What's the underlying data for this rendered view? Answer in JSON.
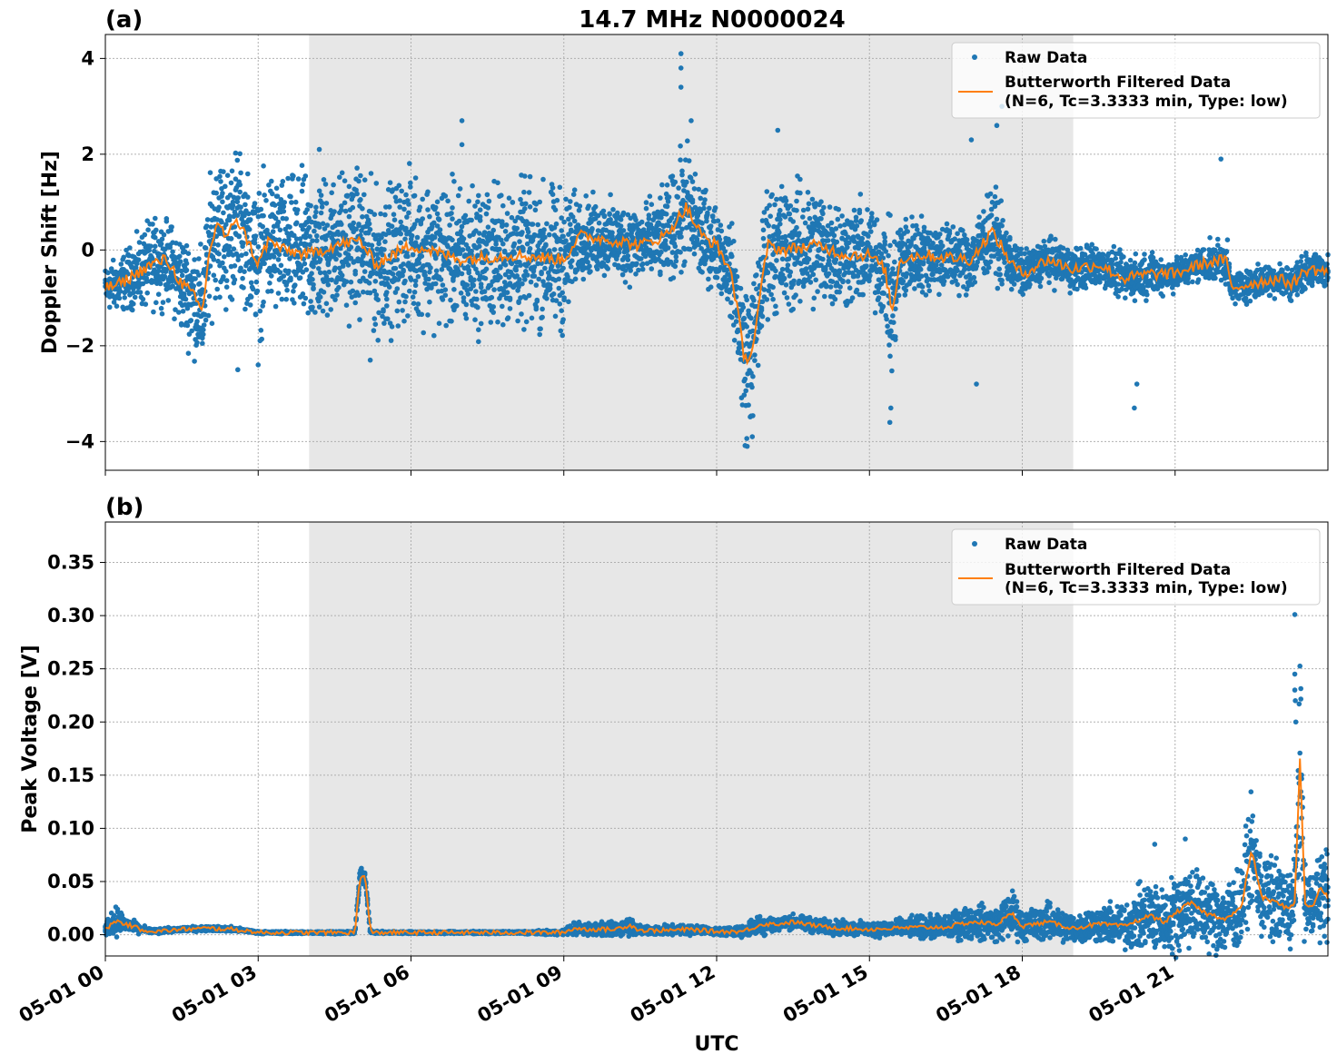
{
  "figure": {
    "title": "14.7 MHz N0000024",
    "xlabel": "UTC"
  },
  "colors": {
    "raw": "#1f77b4",
    "filtered": "#ff7f0e",
    "shade": "#e7e7e7",
    "grid": "#b0b0b0"
  },
  "chart_data": [
    {
      "panel_label": "(a)",
      "type": "scatter",
      "ylabel": "Doppler Shift [Hz]",
      "xlim_hours": [
        0,
        24
      ],
      "ylim": [
        -4.6,
        4.5
      ],
      "yticks": [
        4,
        2,
        0,
        -2,
        -4
      ],
      "ytick_labels": [
        "4",
        "2",
        "0",
        "−2",
        "−4"
      ],
      "xtick_hours": [
        0,
        3,
        6,
        9,
        12,
        15,
        18,
        21
      ],
      "xtick_labels": [
        "05-01 00",
        "05-01 03",
        "05-01 06",
        "05-01 09",
        "05-01 12",
        "05-01 15",
        "05-01 18",
        "05-01 21"
      ],
      "shaded_hours": [
        4.0,
        19.0
      ],
      "grid": true,
      "legend_position": "top-right",
      "legend": [
        "Raw Data",
        "Butterworth Filtered Data",
        "(N=6, Tc=3.3333 min, Type: low)"
      ],
      "series": [
        {
          "name": "Butterworth Filtered Data",
          "x_hours": [
            0.0,
            0.3,
            0.6,
            0.9,
            1.2,
            1.5,
            1.7,
            1.9,
            2.05,
            2.2,
            2.4,
            2.55,
            2.75,
            3.0,
            3.2,
            3.5,
            4.0,
            4.5,
            5.0,
            5.3,
            6.0,
            7.0,
            8.0,
            9.0,
            9.3,
            10.0,
            10.5,
            11.0,
            11.4,
            11.7,
            12.0,
            12.3,
            12.55,
            12.7,
            12.85,
            13.0,
            13.3,
            14.0,
            14.5,
            15.0,
            15.3,
            15.45,
            15.6,
            16.0,
            17.0,
            17.4,
            17.8,
            18.0,
            18.5,
            19.0,
            19.5,
            20.0,
            20.5,
            21.0,
            21.5,
            22.0,
            22.1,
            22.5,
            23.0,
            23.3,
            23.6,
            24.0
          ],
          "y_hz": [
            -0.8,
            -0.7,
            -0.5,
            -0.3,
            -0.2,
            -0.7,
            -0.9,
            -1.3,
            0.0,
            0.6,
            0.2,
            0.7,
            0.3,
            -0.3,
            0.2,
            0.0,
            -0.1,
            0.1,
            0.2,
            -0.3,
            0.1,
            -0.2,
            -0.1,
            -0.2,
            0.3,
            0.2,
            0.1,
            0.3,
            0.9,
            0.3,
            0.1,
            -0.5,
            -2.3,
            -2.1,
            -1.0,
            0.1,
            0.0,
            0.1,
            -0.1,
            -0.1,
            -0.4,
            -1.3,
            -0.2,
            -0.1,
            -0.2,
            0.4,
            -0.3,
            -0.5,
            -0.2,
            -0.4,
            -0.3,
            -0.6,
            -0.5,
            -0.5,
            -0.3,
            -0.2,
            -0.8,
            -0.7,
            -0.6,
            -0.7,
            -0.4,
            -0.45
          ]
        },
        {
          "name": "Raw Data",
          "x_hours": [
            0.0,
            0.3,
            0.6,
            0.9,
            1.2,
            1.5,
            1.7,
            1.9,
            2.05,
            2.2,
            2.4,
            2.55,
            2.75,
            3.0,
            3.2,
            3.5,
            4.0,
            4.5,
            5.0,
            5.3,
            6.0,
            7.0,
            8.0,
            9.0,
            9.3,
            10.0,
            10.5,
            11.0,
            11.4,
            11.7,
            12.0,
            12.3,
            12.55,
            12.7,
            12.85,
            13.0,
            13.3,
            14.0,
            14.5,
            15.0,
            15.3,
            15.45,
            15.6,
            16.0,
            17.0,
            17.4,
            17.8,
            18.0,
            18.5,
            19.0,
            19.5,
            20.0,
            20.5,
            21.0,
            21.5,
            22.0,
            22.1,
            22.5,
            23.0,
            23.3,
            23.6,
            24.0
          ],
          "y_hz": [
            -0.8,
            -0.7,
            -0.5,
            -0.3,
            -0.2,
            -0.7,
            -0.9,
            -1.3,
            0.0,
            0.6,
            0.2,
            0.7,
            0.3,
            -0.3,
            0.2,
            0.0,
            -0.1,
            0.1,
            0.2,
            -0.3,
            0.1,
            -0.2,
            -0.1,
            -0.2,
            0.3,
            0.2,
            0.1,
            0.3,
            0.9,
            0.3,
            0.1,
            -0.5,
            -2.3,
            -2.1,
            -1.0,
            0.1,
            0.0,
            0.1,
            -0.1,
            -0.1,
            -0.4,
            -1.3,
            -0.2,
            -0.1,
            -0.2,
            0.4,
            -0.3,
            -0.5,
            -0.2,
            -0.4,
            -0.3,
            -0.6,
            -0.5,
            -0.5,
            -0.3,
            -0.2,
            -0.8,
            -0.7,
            -0.6,
            -0.7,
            -0.4,
            -0.45
          ],
          "spread_hz": [
            0.4,
            0.5,
            0.6,
            0.8,
            0.7,
            0.9,
            1.0,
            1.1,
            1.2,
            1.3,
            1.4,
            1.3,
            1.2,
            1.3,
            1.3,
            1.3,
            1.4,
            1.3,
            1.3,
            1.3,
            1.3,
            1.3,
            1.3,
            1.3,
            0.7,
            0.7,
            0.7,
            0.8,
            1.2,
            0.9,
            0.7,
            0.8,
            1.5,
            1.3,
            1.1,
            1.2,
            1.2,
            1.1,
            1.0,
            0.9,
            0.9,
            1.4,
            0.8,
            0.7,
            0.6,
            0.8,
            0.5,
            0.4,
            0.4,
            0.4,
            0.4,
            0.4,
            0.4,
            0.3,
            0.3,
            0.4,
            0.3,
            0.3,
            0.3,
            0.3,
            0.3,
            0.3
          ],
          "outliers_x_hours": [
            11.3,
            11.3,
            11.3,
            11.5,
            12.6,
            12.7,
            13.2,
            15.4,
            15.42,
            17.0,
            17.1,
            17.5,
            17.6,
            20.2,
            20.25,
            21.9,
            4.2,
            7.0,
            7.0,
            2.6,
            3.0,
            5.2
          ],
          "outliers_y_hz": [
            4.1,
            3.8,
            3.4,
            2.7,
            -4.1,
            -3.9,
            2.5,
            -3.6,
            -3.3,
            2.3,
            -2.8,
            2.6,
            3.0,
            -3.3,
            -2.8,
            1.9,
            2.1,
            2.7,
            2.2,
            -2.5,
            -2.4,
            -2.3
          ]
        }
      ]
    },
    {
      "panel_label": "(b)",
      "type": "scatter",
      "ylabel": "Peak Voltage [V]",
      "xlim_hours": [
        0,
        24
      ],
      "ylim": [
        -0.02,
        0.388
      ],
      "yticks": [
        0.0,
        0.05,
        0.1,
        0.15,
        0.2,
        0.25,
        0.3,
        0.35
      ],
      "ytick_labels": [
        "0.00",
        "0.05",
        "0.10",
        "0.15",
        "0.20",
        "0.25",
        "0.30",
        "0.35"
      ],
      "xtick_hours": [
        0,
        3,
        6,
        9,
        12,
        15,
        18,
        21
      ],
      "xtick_labels": [
        "05-01 00",
        "05-01 03",
        "05-01 06",
        "05-01 09",
        "05-01 12",
        "05-01 15",
        "05-01 18",
        "05-01 21"
      ],
      "shaded_hours": [
        4.0,
        19.0
      ],
      "grid": true,
      "legend_position": "top-right",
      "legend": [
        "Raw Data",
        "Butterworth Filtered Data",
        "(N=6, Tc=3.3333 min, Type: low)"
      ],
      "series": [
        {
          "name": "Butterworth Filtered Data",
          "x_hours": [
            0.0,
            0.2,
            0.4,
            0.7,
            1.0,
            1.5,
            2.0,
            2.5,
            2.9,
            3.0,
            4.0,
            4.9,
            5.0,
            5.1,
            5.2,
            5.3,
            6.0,
            7.0,
            8.0,
            9.0,
            9.2,
            9.5,
            10.0,
            10.3,
            10.5,
            11.0,
            11.5,
            12.0,
            12.5,
            12.9,
            13.2,
            13.5,
            14.0,
            14.5,
            15.0,
            15.5,
            16.0,
            16.5,
            17.0,
            17.5,
            17.8,
            18.0,
            18.5,
            19.0,
            19.5,
            20.0,
            20.5,
            20.8,
            21.0,
            21.3,
            21.6,
            22.0,
            22.3,
            22.5,
            22.7,
            23.0,
            23.2,
            23.35,
            23.45,
            23.55,
            23.7,
            23.85,
            24.0
          ],
          "y_v": [
            0.005,
            0.013,
            0.01,
            0.005,
            0.003,
            0.005,
            0.006,
            0.005,
            0.003,
            0.002,
            0.002,
            0.002,
            0.055,
            0.055,
            0.003,
            0.002,
            0.002,
            0.002,
            0.002,
            0.002,
            0.006,
            0.005,
            0.005,
            0.009,
            0.004,
            0.004,
            0.005,
            0.003,
            0.003,
            0.01,
            0.01,
            0.012,
            0.008,
            0.006,
            0.005,
            0.006,
            0.007,
            0.007,
            0.012,
            0.01,
            0.02,
            0.008,
            0.012,
            0.006,
            0.01,
            0.008,
            0.018,
            0.012,
            0.02,
            0.03,
            0.02,
            0.015,
            0.025,
            0.08,
            0.035,
            0.03,
            0.025,
            0.03,
            0.165,
            0.03,
            0.025,
            0.045,
            0.035
          ]
        },
        {
          "name": "Raw Data",
          "x_hours": [
            0.0,
            0.2,
            0.4,
            0.7,
            1.0,
            1.5,
            2.0,
            2.5,
            2.9,
            3.0,
            4.0,
            4.9,
            5.0,
            5.1,
            5.2,
            5.3,
            6.0,
            7.0,
            8.0,
            9.0,
            9.2,
            9.5,
            10.0,
            10.3,
            10.5,
            11.0,
            11.5,
            12.0,
            12.5,
            12.9,
            13.2,
            13.5,
            14.0,
            14.5,
            15.0,
            15.5,
            16.0,
            16.5,
            17.0,
            17.5,
            17.8,
            18.0,
            18.5,
            19.0,
            19.5,
            20.0,
            20.5,
            20.8,
            21.0,
            21.3,
            21.6,
            22.0,
            22.3,
            22.5,
            22.7,
            23.0,
            23.2,
            23.35,
            23.45,
            23.55,
            23.7,
            23.85,
            24.0
          ],
          "y_v": [
            0.005,
            0.013,
            0.01,
            0.005,
            0.003,
            0.005,
            0.006,
            0.005,
            0.003,
            0.002,
            0.002,
            0.002,
            0.055,
            0.055,
            0.003,
            0.002,
            0.002,
            0.002,
            0.002,
            0.002,
            0.006,
            0.005,
            0.005,
            0.009,
            0.004,
            0.004,
            0.005,
            0.003,
            0.003,
            0.01,
            0.01,
            0.012,
            0.008,
            0.006,
            0.005,
            0.006,
            0.007,
            0.007,
            0.012,
            0.01,
            0.02,
            0.008,
            0.012,
            0.006,
            0.01,
            0.008,
            0.018,
            0.012,
            0.02,
            0.03,
            0.02,
            0.015,
            0.025,
            0.08,
            0.035,
            0.03,
            0.025,
            0.03,
            0.165,
            0.03,
            0.025,
            0.045,
            0.035
          ],
          "spread_v": [
            0.004,
            0.012,
            0.006,
            0.003,
            0.002,
            0.002,
            0.002,
            0.002,
            0.001,
            0.001,
            0.001,
            0.001,
            0.006,
            0.006,
            0.001,
            0.001,
            0.001,
            0.001,
            0.001,
            0.002,
            0.006,
            0.005,
            0.006,
            0.008,
            0.004,
            0.004,
            0.004,
            0.003,
            0.004,
            0.009,
            0.006,
            0.006,
            0.006,
            0.006,
            0.006,
            0.007,
            0.009,
            0.01,
            0.014,
            0.014,
            0.02,
            0.012,
            0.015,
            0.012,
            0.015,
            0.018,
            0.03,
            0.025,
            0.035,
            0.035,
            0.03,
            0.03,
            0.035,
            0.04,
            0.035,
            0.035,
            0.03,
            0.04,
            0.08,
            0.03,
            0.03,
            0.04,
            0.04
          ],
          "outliers_x_hours": [
            23.35,
            23.35,
            23.35,
            23.36,
            23.37,
            21.2,
            20.6
          ],
          "outliers_y_v": [
            0.301,
            0.245,
            0.23,
            0.22,
            0.2,
            0.09,
            0.085
          ]
        }
      ]
    }
  ]
}
